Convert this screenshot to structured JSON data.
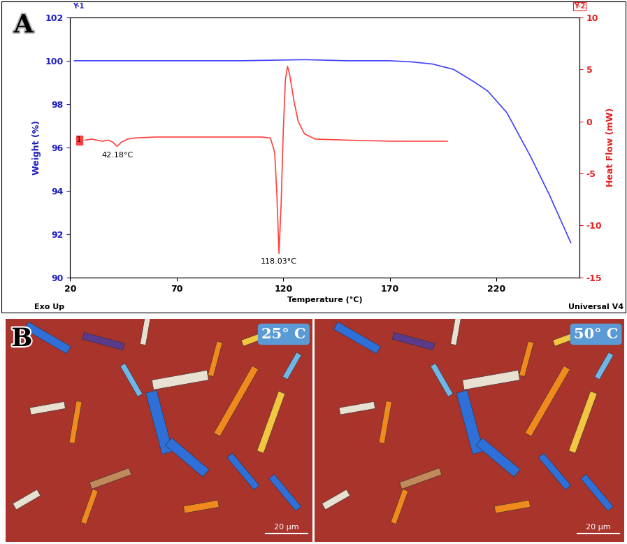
{
  "panel_labels": [
    "A",
    "B"
  ],
  "chart_data": {
    "type": "line",
    "x_label": "Temperature (°C)",
    "y_label": "Weight (%)",
    "y2_label": "Heat Flow (mW)",
    "axis_tags": {
      "y": "Y-1",
      "y2": "Y-2"
    },
    "footer": {
      "left": "Exo Up",
      "right": "Universal V4"
    },
    "xlim": [
      20,
      259
    ],
    "xticks": [
      20,
      70,
      120,
      170,
      220
    ],
    "ylim": [
      90,
      102
    ],
    "yticks": [
      90,
      92,
      94,
      96,
      98,
      100,
      102
    ],
    "y2lim": [
      -15,
      10
    ],
    "y2ticks": [
      -15,
      -10,
      -5,
      0,
      5,
      10
    ],
    "series": [
      {
        "name": "Weight",
        "color": "#4040ff",
        "axis": "y",
        "x": [
          22,
          50,
          100,
          130,
          150,
          170,
          180,
          190,
          200,
          210,
          216,
          225,
          236,
          245,
          255
        ],
        "values": [
          100,
          100,
          100,
          100.05,
          100,
          100,
          99.95,
          99.85,
          99.6,
          99.0,
          98.6,
          97.6,
          95.6,
          93.8,
          91.6
        ]
      },
      {
        "name": "Heat Flow",
        "color": "#ff4040",
        "axis": "y2",
        "tag": "1",
        "x": [
          27,
          30,
          35,
          38,
          40,
          42,
          44,
          47,
          50,
          60,
          80,
          100,
          110,
          114,
          116,
          117,
          118,
          119,
          120,
          121,
          122,
          123,
          125,
          127,
          130,
          135,
          150,
          170,
          197
        ],
        "values": [
          -1.8,
          -1.7,
          -1.9,
          -1.8,
          -2.0,
          -2.4,
          -2.0,
          -1.7,
          -1.6,
          -1.5,
          -1.5,
          -1.5,
          -1.5,
          -1.6,
          -3.0,
          -7.0,
          -12.7,
          -8.0,
          -1.0,
          4.0,
          5.3,
          4.5,
          2.0,
          0.0,
          -1.2,
          -1.7,
          -1.8,
          -1.9,
          -1.9
        ]
      }
    ],
    "annotations": [
      {
        "text": "42.18°C",
        "x": 42.18,
        "axis": "y2"
      },
      {
        "text": "118.03°C",
        "x": 118.03,
        "axis": "y2"
      }
    ]
  },
  "micrographs": [
    {
      "label": "25° C",
      "scale_bar": "20 µm"
    },
    {
      "label": "50° C",
      "scale_bar": "20 µm"
    }
  ]
}
